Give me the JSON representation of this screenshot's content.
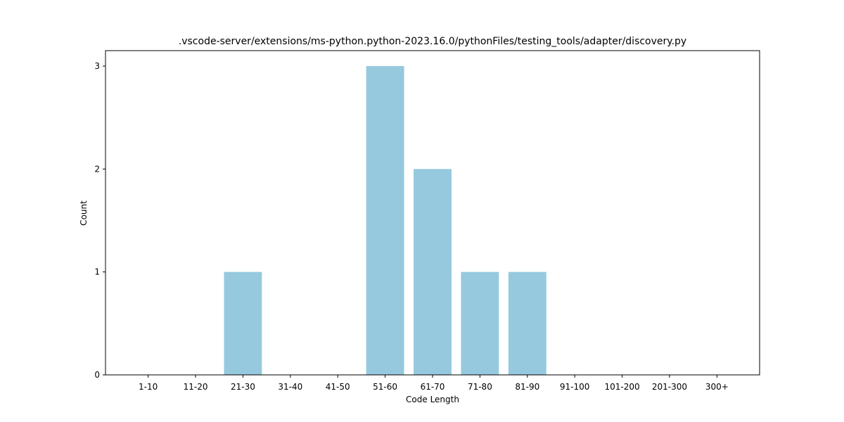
{
  "chart_data": {
    "type": "bar",
    "title": ".vscode-server/extensions/ms-python.python-2023.16.0/pythonFiles/testing_tools/adapter/discovery.py",
    "xlabel": "Code Length",
    "ylabel": "Count",
    "categories": [
      "1-10",
      "11-20",
      "21-30",
      "31-40",
      "41-50",
      "51-60",
      "61-70",
      "71-80",
      "81-90",
      "91-100",
      "101-200",
      "201-300",
      "300+"
    ],
    "values": [
      0,
      0,
      1,
      0,
      0,
      3,
      2,
      1,
      1,
      0,
      0,
      0,
      0
    ],
    "ylim": [
      0,
      3.15
    ],
    "yticks": [
      0,
      1,
      2,
      3
    ],
    "bar_color": "#96c9de",
    "grid": false,
    "legend": "none"
  }
}
